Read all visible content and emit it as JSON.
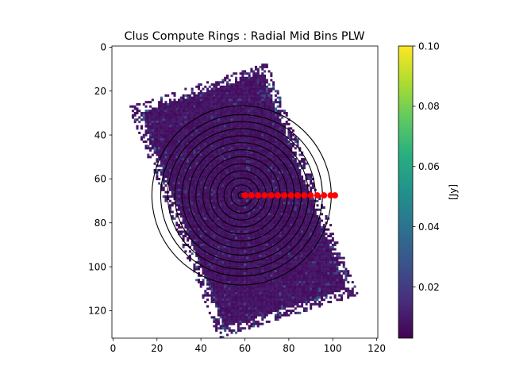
{
  "chart_data": {
    "type": "heatmap",
    "title": "Clus Compute Rings : Radial Mid Bins PLW",
    "xlabel": "",
    "ylabel": "",
    "xlim": [
      -0.5,
      120.5
    ],
    "ylim": [
      132.5,
      -0.5
    ],
    "y_inverted": true,
    "x_ticks": [
      "0",
      "20",
      "40",
      "60",
      "80",
      "100",
      "120"
    ],
    "y_ticks": [
      "0",
      "20",
      "40",
      "60",
      "80",
      "100",
      "120"
    ],
    "colormap": "viridis",
    "colorbar": {
      "label": "[Jy]",
      "vmin": 0.003,
      "vmax": 0.1,
      "ticks": [
        "0.02",
        "0.04",
        "0.06",
        "0.08",
        "0.10"
      ]
    },
    "map_footprint": {
      "shape": "rotated rectangle",
      "corners": [
        [
          9,
          28
        ],
        [
          68,
          5
        ],
        [
          114,
          106
        ],
        [
          42,
          133
        ]
      ],
      "typical_value": 0.008
    },
    "rings": {
      "center": [
        58.5,
        67.5
      ],
      "radii": [
        1.6,
        4.8,
        8.0,
        11.2,
        14.4,
        17.6,
        20.8,
        24.0,
        27.2,
        30.4,
        33.6,
        36.8,
        40.8
      ],
      "color": "#000000"
    },
    "bin_markers": {
      "color": "#ff0000",
      "y": 67.5,
      "x": [
        60,
        63,
        66,
        69,
        72,
        75,
        78,
        81,
        84,
        87,
        90,
        93,
        96,
        99,
        101
      ]
    }
  }
}
